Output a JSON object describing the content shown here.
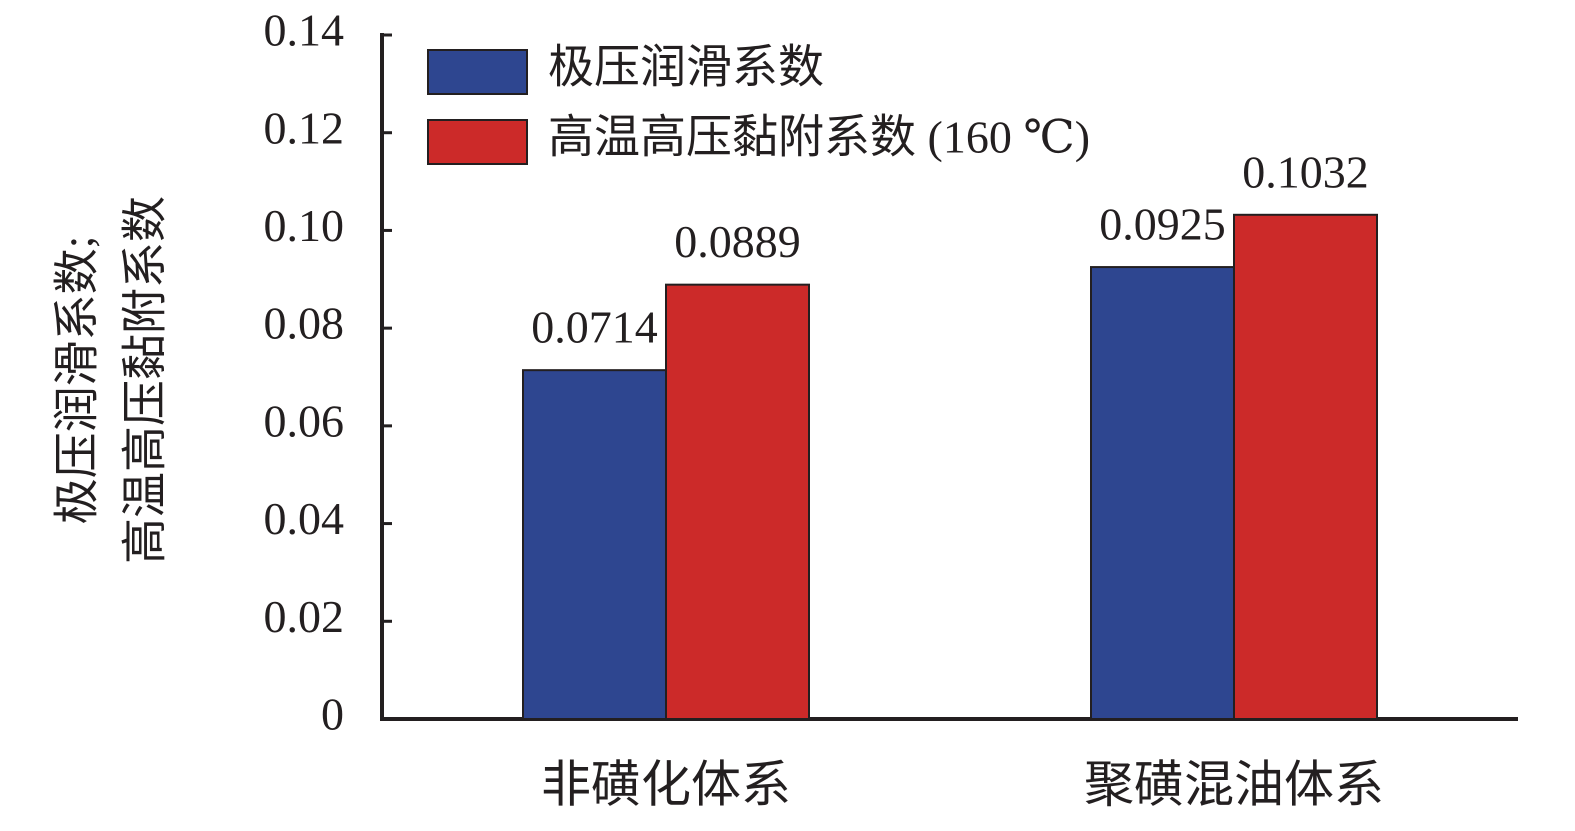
{
  "chart_data": {
    "type": "bar",
    "ylabel": [
      "极压润滑系数;",
      "高温高压黏附系数"
    ],
    "categories": [
      "非磺化体系",
      "聚磺混油体系"
    ],
    "series": [
      {
        "name": "极压润滑系数",
        "color": "#2e4690",
        "values": [
          0.0714,
          0.0925
        ]
      },
      {
        "name": "高温高压黏附系数 (160 ℃)",
        "color": "#cc2a29",
        "values": [
          0.0889,
          0.1032
        ]
      }
    ],
    "ylim": [
      0,
      0.14
    ],
    "yticks": [
      0,
      0.02,
      0.04,
      0.06,
      0.08,
      {
        "value": 0.1,
        "label": "0.10"
      },
      0.12,
      0.14
    ],
    "legend": "upper left"
  }
}
